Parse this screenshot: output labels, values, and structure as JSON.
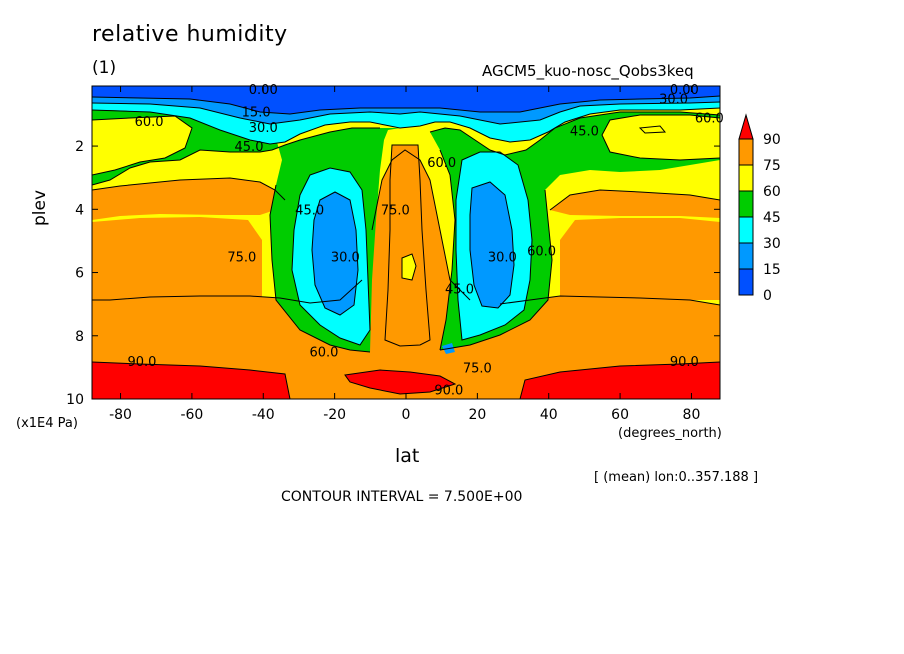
{
  "title": "relative humidity",
  "panel_label": "(1)",
  "model_name": "AGCM5_kuo-nosc_Qobs3keq",
  "mean_note": "[ (mean) lon:0..357.188 ]",
  "contour_interval": "CONTOUR INTERVAL = 7.500E+00",
  "chart_data": {
    "type": "heatmap",
    "title": "relative humidity",
    "xlabel": "lat",
    "x_units": "(degrees_north)",
    "ylabel": "plev",
    "y_units": "(x1E4 Pa)",
    "xlim": [
      -88,
      88
    ],
    "ylim": [
      10,
      0.1
    ],
    "x_ticks": [
      "-80",
      "-60",
      "-40",
      "-20",
      "0",
      "20",
      "40",
      "60",
      "80"
    ],
    "y_ticks": [
      "2",
      "4",
      "6",
      "8",
      "10"
    ],
    "colorbar": {
      "levels": [
        "90",
        "75",
        "60",
        "45",
        "30",
        "15",
        "0"
      ],
      "colors": [
        "#ff0000",
        "#ff9900",
        "#ffff00",
        "#00cc00",
        "#00ffff",
        "#0099ff",
        "#0050ff"
      ]
    },
    "contour_labels": [
      {
        "text": "0.00",
        "lat": -40,
        "p": 0.2
      },
      {
        "text": "15.0",
        "lat": -42,
        "p": 0.9
      },
      {
        "text": "30.0",
        "lat": -40,
        "p": 1.4
      },
      {
        "text": "45.0",
        "lat": -44,
        "p": 2.0
      },
      {
        "text": "60.0",
        "lat": -72,
        "p": 1.2
      },
      {
        "text": "0.00",
        "lat": 78,
        "p": 0.2
      },
      {
        "text": "30.0",
        "lat": 75,
        "p": 0.5
      },
      {
        "text": "60.0",
        "lat": 85,
        "p": 1.1
      },
      {
        "text": "45.0",
        "lat": 50,
        "p": 1.5
      },
      {
        "text": "45.0",
        "lat": -27,
        "p": 4.0
      },
      {
        "text": "75.0",
        "lat": -3,
        "p": 4.0
      },
      {
        "text": "60.0",
        "lat": 10,
        "p": 2.5
      },
      {
        "text": "30.0",
        "lat": -17,
        "p": 5.5
      },
      {
        "text": "30.0",
        "lat": 27,
        "p": 5.5
      },
      {
        "text": "60.0",
        "lat": 38,
        "p": 5.3
      },
      {
        "text": "45.0",
        "lat": 15,
        "p": 6.5
      },
      {
        "text": "75.0",
        "lat": -46,
        "p": 5.5
      },
      {
        "text": "60.0",
        "lat": -23,
        "p": 8.5
      },
      {
        "text": "75.0",
        "lat": 20,
        "p": 9.0
      },
      {
        "text": "90.0",
        "lat": -74,
        "p": 8.8
      },
      {
        "text": "90.0",
        "lat": 78,
        "p": 8.8
      },
      {
        "text": "90.0",
        "lat": 12,
        "p": 9.7
      }
    ]
  }
}
